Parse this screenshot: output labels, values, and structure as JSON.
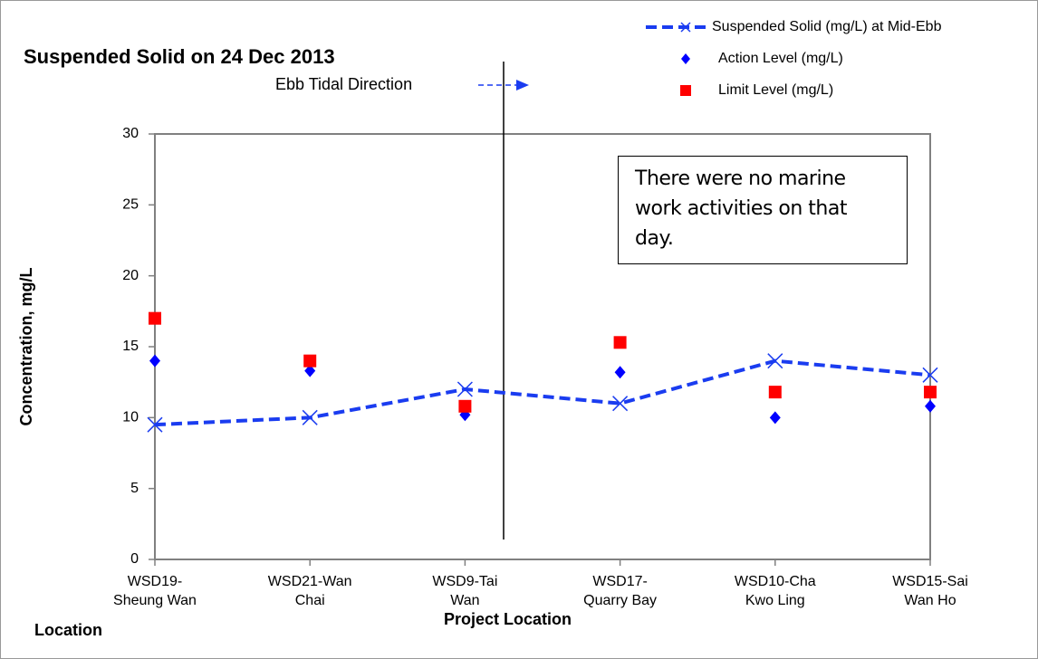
{
  "chart_data": {
    "type": "line",
    "title": "Suspended Solid on 24 Dec 2013",
    "y_label": "Concentration, mg/L",
    "x_label": "Project Location",
    "corner_label": "Location",
    "annotations": [
      "Ebb Tidal Direction",
      "There were no marine\nwork activities on that\nday."
    ],
    "categories": [
      "WSD19-\nSheung Wan",
      "WSD21-Wan\nChai",
      "WSD9-Tai\nWan",
      "WSD17-\nQuarry Bay",
      "WSD10-Cha\nKwo Ling",
      "WSD15-Sai\nWan Ho"
    ],
    "series": [
      {
        "name": "Suspended Solid (mg/L) at Mid-Ebb",
        "color": "#1a3cf0",
        "marker": "x",
        "line": true,
        "values": [
          9.5,
          10,
          12,
          11,
          14,
          13
        ]
      },
      {
        "name": "Action Level (mg/L)",
        "color": "#0000ff",
        "marker": "diamond",
        "line": false,
        "values": [
          14,
          13.3,
          10.2,
          13.2,
          10,
          10.8
        ]
      },
      {
        "name": "Limit Level (mg/L)",
        "color": "#ff0000",
        "marker": "square",
        "line": false,
        "values": [
          17,
          14,
          10.8,
          15.3,
          11.8,
          11.8
        ]
      }
    ],
    "ylim": [
      0,
      30
    ],
    "yticks": [
      0,
      5,
      10,
      15,
      20,
      25,
      30
    ],
    "grid": false,
    "legend": "top-right"
  }
}
